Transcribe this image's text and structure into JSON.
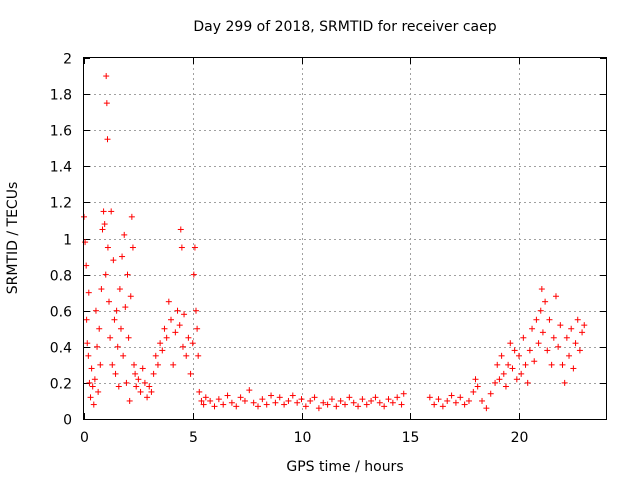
{
  "chart_data": {
    "type": "scatter",
    "title": "Day 299 of 2018, SRMTID for receiver caep",
    "xlabel": "GPS time / hours",
    "ylabel": "SRMTID / TECUs",
    "xlim": [
      0,
      24
    ],
    "ylim": [
      0,
      2
    ],
    "xticks": [
      0,
      5,
      10,
      15,
      20
    ],
    "xtick_labels": [
      "0",
      "5",
      "10",
      "15",
      "20"
    ],
    "yticks": [
      0,
      0.2,
      0.4,
      0.6,
      0.8,
      1,
      1.2,
      1.4,
      1.6,
      1.8,
      2
    ],
    "ytick_labels": [
      "0",
      "0.2",
      "0.4",
      "0.6",
      "0.8",
      "1",
      "1.2",
      "1.4",
      "1.6",
      "1.8",
      "2"
    ],
    "grid": true,
    "marker": "+",
    "color": "#ff0000",
    "series": [
      {
        "name": "SRMTID",
        "points": [
          [
            0.0,
            1.12
          ],
          [
            0.05,
            0.98
          ],
          [
            0.1,
            0.85
          ],
          [
            0.12,
            0.55
          ],
          [
            0.15,
            0.42
          ],
          [
            0.2,
            0.35
          ],
          [
            0.22,
            0.7
          ],
          [
            0.25,
            0.2
          ],
          [
            0.3,
            0.12
          ],
          [
            0.35,
            0.28
          ],
          [
            0.4,
            0.18
          ],
          [
            0.45,
            0.08
          ],
          [
            0.5,
            0.22
          ],
          [
            0.55,
            0.6
          ],
          [
            0.6,
            0.4
          ],
          [
            0.65,
            0.15
          ],
          [
            0.7,
            0.5
          ],
          [
            0.75,
            0.3
          ],
          [
            0.8,
            0.72
          ],
          [
            0.85,
            1.05
          ],
          [
            0.9,
            1.15
          ],
          [
            0.95,
            1.08
          ],
          [
            1.0,
            0.8
          ],
          [
            1.02,
            1.9
          ],
          [
            1.05,
            1.75
          ],
          [
            1.08,
            1.55
          ],
          [
            1.1,
            0.95
          ],
          [
            1.15,
            0.65
          ],
          [
            1.2,
            0.45
          ],
          [
            1.25,
            1.15
          ],
          [
            1.3,
            0.3
          ],
          [
            1.35,
            0.88
          ],
          [
            1.4,
            0.55
          ],
          [
            1.45,
            0.25
          ],
          [
            1.5,
            0.6
          ],
          [
            1.55,
            0.4
          ],
          [
            1.6,
            0.18
          ],
          [
            1.65,
            0.72
          ],
          [
            1.7,
            0.5
          ],
          [
            1.75,
            0.9
          ],
          [
            1.8,
            0.35
          ],
          [
            1.85,
            1.02
          ],
          [
            1.9,
            0.62
          ],
          [
            1.95,
            0.2
          ],
          [
            2.0,
            0.8
          ],
          [
            2.05,
            0.45
          ],
          [
            2.1,
            0.1
          ],
          [
            2.15,
            0.68
          ],
          [
            2.2,
            1.12
          ],
          [
            2.25,
            0.95
          ],
          [
            2.3,
            0.3
          ],
          [
            2.35,
            0.25
          ],
          [
            2.4,
            0.18
          ],
          [
            2.5,
            0.22
          ],
          [
            2.6,
            0.15
          ],
          [
            2.7,
            0.28
          ],
          [
            2.8,
            0.2
          ],
          [
            2.9,
            0.12
          ],
          [
            3.0,
            0.18
          ],
          [
            3.1,
            0.15
          ],
          [
            3.2,
            0.25
          ],
          [
            3.3,
            0.35
          ],
          [
            3.4,
            0.3
          ],
          [
            3.5,
            0.42
          ],
          [
            3.6,
            0.38
          ],
          [
            3.7,
            0.5
          ],
          [
            3.8,
            0.45
          ],
          [
            3.9,
            0.65
          ],
          [
            4.0,
            0.55
          ],
          [
            4.1,
            0.3
          ],
          [
            4.2,
            0.48
          ],
          [
            4.3,
            0.6
          ],
          [
            4.4,
            0.52
          ],
          [
            4.45,
            1.05
          ],
          [
            4.5,
            0.95
          ],
          [
            4.55,
            0.4
          ],
          [
            4.6,
            0.58
          ],
          [
            4.7,
            0.35
          ],
          [
            4.8,
            0.45
          ],
          [
            4.9,
            0.25
          ],
          [
            5.0,
            0.42
          ],
          [
            5.05,
            0.8
          ],
          [
            5.1,
            0.95
          ],
          [
            5.15,
            0.6
          ],
          [
            5.2,
            0.5
          ],
          [
            5.25,
            0.35
          ],
          [
            5.3,
            0.15
          ],
          [
            5.4,
            0.1
          ],
          [
            5.5,
            0.08
          ],
          [
            5.6,
            0.12
          ],
          [
            5.8,
            0.1
          ],
          [
            6.0,
            0.07
          ],
          [
            6.2,
            0.11
          ],
          [
            6.4,
            0.08
          ],
          [
            6.6,
            0.13
          ],
          [
            6.8,
            0.09
          ],
          [
            7.0,
            0.07
          ],
          [
            7.2,
            0.12
          ],
          [
            7.4,
            0.1
          ],
          [
            7.6,
            0.16
          ],
          [
            7.8,
            0.09
          ],
          [
            8.0,
            0.07
          ],
          [
            8.2,
            0.11
          ],
          [
            8.4,
            0.08
          ],
          [
            8.6,
            0.13
          ],
          [
            8.8,
            0.09
          ],
          [
            9.0,
            0.12
          ],
          [
            9.2,
            0.08
          ],
          [
            9.4,
            0.1
          ],
          [
            9.6,
            0.13
          ],
          [
            9.8,
            0.09
          ],
          [
            10.0,
            0.11
          ],
          [
            10.2,
            0.07
          ],
          [
            10.4,
            0.1
          ],
          [
            10.6,
            0.12
          ],
          [
            10.8,
            0.06
          ],
          [
            11.0,
            0.09
          ],
          [
            11.2,
            0.08
          ],
          [
            11.4,
            0.11
          ],
          [
            11.6,
            0.07
          ],
          [
            11.8,
            0.1
          ],
          [
            12.0,
            0.08
          ],
          [
            12.2,
            0.12
          ],
          [
            12.4,
            0.09
          ],
          [
            12.6,
            0.07
          ],
          [
            12.8,
            0.11
          ],
          [
            13.0,
            0.08
          ],
          [
            13.2,
            0.1
          ],
          [
            13.4,
            0.12
          ],
          [
            13.6,
            0.09
          ],
          [
            13.8,
            0.07
          ],
          [
            14.0,
            0.11
          ],
          [
            14.2,
            0.09
          ],
          [
            14.4,
            0.12
          ],
          [
            14.6,
            0.08
          ],
          [
            14.7,
            0.14
          ],
          [
            15.9,
            0.12
          ],
          [
            16.1,
            0.08
          ],
          [
            16.3,
            0.11
          ],
          [
            16.5,
            0.07
          ],
          [
            16.7,
            0.1
          ],
          [
            16.9,
            0.13
          ],
          [
            17.1,
            0.09
          ],
          [
            17.3,
            0.12
          ],
          [
            17.5,
            0.08
          ],
          [
            17.7,
            0.1
          ],
          [
            17.9,
            0.15
          ],
          [
            18.0,
            0.22
          ],
          [
            18.1,
            0.18
          ],
          [
            18.3,
            0.1
          ],
          [
            18.5,
            0.06
          ],
          [
            18.7,
            0.14
          ],
          [
            18.9,
            0.2
          ],
          [
            19.0,
            0.3
          ],
          [
            19.1,
            0.22
          ],
          [
            19.2,
            0.35
          ],
          [
            19.3,
            0.25
          ],
          [
            19.4,
            0.18
          ],
          [
            19.5,
            0.3
          ],
          [
            19.6,
            0.42
          ],
          [
            19.7,
            0.28
          ],
          [
            19.8,
            0.38
          ],
          [
            19.9,
            0.22
          ],
          [
            20.0,
            0.35
          ],
          [
            20.1,
            0.25
          ],
          [
            20.2,
            0.45
          ],
          [
            20.3,
            0.3
          ],
          [
            20.4,
            0.2
          ],
          [
            20.5,
            0.38
          ],
          [
            20.6,
            0.5
          ],
          [
            20.7,
            0.32
          ],
          [
            20.8,
            0.55
          ],
          [
            20.9,
            0.42
          ],
          [
            21.0,
            0.6
          ],
          [
            21.05,
            0.72
          ],
          [
            21.1,
            0.48
          ],
          [
            21.2,
            0.65
          ],
          [
            21.3,
            0.38
          ],
          [
            21.4,
            0.55
          ],
          [
            21.5,
            0.3
          ],
          [
            21.6,
            0.45
          ],
          [
            21.7,
            0.68
          ],
          [
            21.8,
            0.4
          ],
          [
            21.9,
            0.52
          ],
          [
            22.0,
            0.3
          ],
          [
            22.1,
            0.2
          ],
          [
            22.2,
            0.45
          ],
          [
            22.3,
            0.35
          ],
          [
            22.4,
            0.5
          ],
          [
            22.5,
            0.28
          ],
          [
            22.6,
            0.42
          ],
          [
            22.7,
            0.55
          ],
          [
            22.8,
            0.38
          ],
          [
            22.9,
            0.48
          ],
          [
            23.0,
            0.52
          ]
        ]
      }
    ]
  }
}
